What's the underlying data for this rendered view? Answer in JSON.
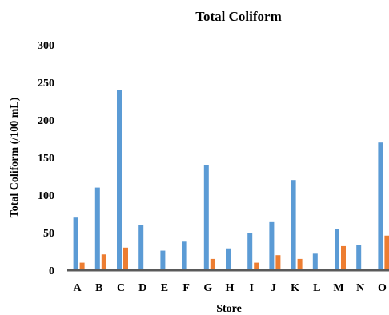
{
  "chart_data": {
    "type": "bar",
    "title": "Total Coliform",
    "xlabel": "Store",
    "ylabel": "Total Coliform (/100 mL)",
    "ylim": [
      0,
      300
    ],
    "yticks": [
      0,
      50,
      100,
      150,
      200,
      250,
      300
    ],
    "grid": false,
    "legend": "none",
    "categories": [
      "A",
      "B",
      "C",
      "D",
      "E",
      "F",
      "G",
      "H",
      "I",
      "J",
      "K",
      "L",
      "M",
      "N",
      "O"
    ],
    "series": [
      {
        "color": "#5B9BD5",
        "values": [
          70,
          110,
          240,
          60,
          26,
          38,
          140,
          29,
          50,
          64,
          120,
          22,
          55,
          34,
          170
        ]
      },
      {
        "color": "#ED7D31",
        "values": [
          10,
          21,
          30,
          0,
          0,
          0,
          15,
          0,
          10,
          20,
          15,
          0,
          32,
          0,
          46
        ]
      }
    ],
    "axis_color": "#595959"
  }
}
